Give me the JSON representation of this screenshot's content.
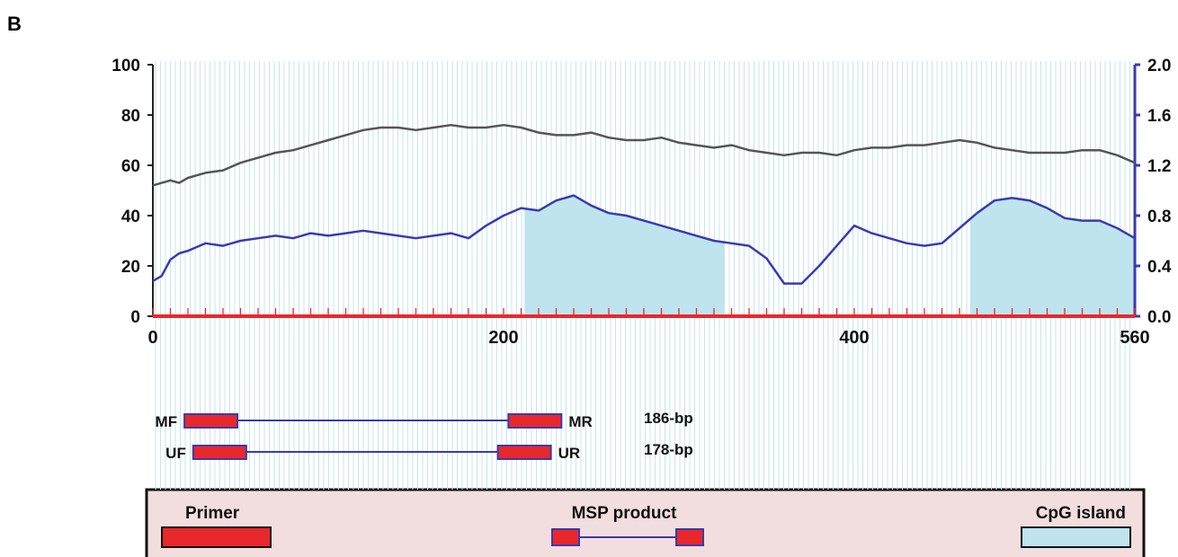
{
  "panel_label": "B",
  "chart_data": {
    "type": "line",
    "x_ticks": [
      0,
      200,
      400,
      560
    ],
    "xlim": [
      0,
      560
    ],
    "y_left_ticks": [
      0,
      20,
      40,
      60,
      80,
      100
    ],
    "ylim_left": [
      0,
      100
    ],
    "y_right_ticks": [
      "0.0",
      "0.4",
      "0.8",
      "1.2",
      "1.6",
      "2.0"
    ],
    "ylim_right": [
      0,
      2.0
    ],
    "colors": {
      "gc_line": "#555555",
      "obs_exp_line": "#3a3ab0",
      "cpg_island": "#bfe4ee",
      "axis_x": "#e8282b",
      "primer": "#e8282b",
      "right_axis": "#3a3ab0"
    },
    "series": [
      {
        "axis": "left",
        "x": [
          0,
          5,
          10,
          15,
          20,
          25,
          30,
          40,
          50,
          60,
          70,
          80,
          90,
          100,
          110,
          120,
          130,
          140,
          150,
          160,
          170,
          180,
          190,
          200,
          210,
          220,
          230,
          240,
          250,
          260,
          270,
          280,
          290,
          300,
          310,
          320,
          330,
          340,
          350,
          360,
          370,
          380,
          390,
          400,
          410,
          420,
          430,
          440,
          450,
          460,
          470,
          480,
          490,
          500,
          510,
          520,
          530,
          540,
          550,
          560
        ],
        "y": [
          52,
          53,
          54,
          53,
          55,
          56,
          57,
          58,
          61,
          63,
          65,
          66,
          68,
          70,
          72,
          74,
          75,
          75,
          74,
          75,
          76,
          75,
          75,
          76,
          75,
          73,
          72,
          72,
          73,
          71,
          70,
          70,
          71,
          69,
          68,
          67,
          68,
          66,
          65,
          64,
          65,
          65,
          64,
          66,
          67,
          67,
          68,
          68,
          69,
          70,
          69,
          67,
          66,
          65,
          65,
          65,
          66,
          66,
          64,
          61
        ]
      },
      {
        "axis": "right",
        "x": [
          0,
          5,
          10,
          15,
          20,
          25,
          30,
          40,
          50,
          60,
          70,
          80,
          90,
          100,
          110,
          120,
          130,
          140,
          150,
          160,
          170,
          180,
          190,
          200,
          210,
          220,
          230,
          240,
          250,
          260,
          270,
          280,
          290,
          300,
          310,
          320,
          330,
          340,
          350,
          360,
          370,
          380,
          390,
          400,
          410,
          420,
          430,
          440,
          450,
          460,
          470,
          480,
          490,
          500,
          510,
          520,
          530,
          540,
          550,
          560
        ],
        "y": [
          0.28,
          0.32,
          0.45,
          0.5,
          0.52,
          0.55,
          0.58,
          0.56,
          0.6,
          0.62,
          0.64,
          0.62,
          0.66,
          0.64,
          0.66,
          0.68,
          0.66,
          0.64,
          0.62,
          0.64,
          0.66,
          0.62,
          0.72,
          0.8,
          0.86,
          0.84,
          0.92,
          0.96,
          0.88,
          0.82,
          0.8,
          0.76,
          0.72,
          0.68,
          0.64,
          0.6,
          0.58,
          0.56,
          0.46,
          0.26,
          0.26,
          0.4,
          0.56,
          0.72,
          0.66,
          0.62,
          0.58,
          0.56,
          0.58,
          0.7,
          0.82,
          0.92,
          0.94,
          0.92,
          0.86,
          0.78,
          0.76,
          0.76,
          0.7,
          0.62
        ]
      }
    ],
    "cpg_islands": [
      [
        212,
        326
      ],
      [
        466,
        560
      ]
    ]
  },
  "primers": [
    {
      "left": "MF",
      "right": "MR",
      "size": "186-bp",
      "start": 18,
      "end": 233
    },
    {
      "left": "UF",
      "right": "UR",
      "size": "178-bp",
      "start": 23,
      "end": 227
    }
  ],
  "legend": {
    "primer": "Primer",
    "msp_product": "MSP product",
    "cpg_island": "CpG island"
  }
}
